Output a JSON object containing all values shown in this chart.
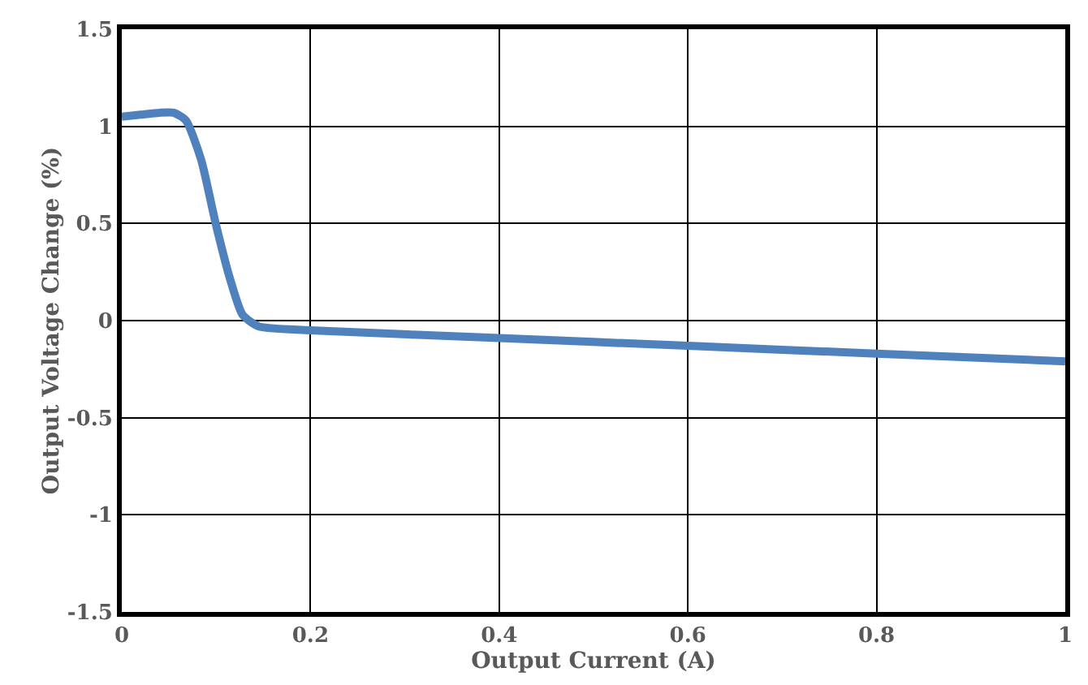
{
  "chart_data": {
    "type": "line",
    "xlabel": "Output Current (A)",
    "ylabel": "Output Voltage Change (%)",
    "x": [
      0,
      0.02,
      0.04,
      0.055,
      0.068,
      0.084,
      0.1,
      0.115,
      0.128,
      0.145,
      0.2,
      0.4,
      0.6,
      0.8,
      1
    ],
    "series": [
      {
        "color": "#4f81bd",
        "values": [
          1.05,
          1.06,
          1.07,
          1.07,
          1.03,
          0.83,
          0.49,
          0.21,
          0.03,
          -0.03,
          -0.05,
          -0.09,
          -0.13,
          -0.17,
          -0.21
        ]
      }
    ],
    "xlim": [
      0,
      1
    ],
    "xticks": [
      0,
      0.2,
      0.4,
      0.6,
      0.8,
      1
    ],
    "ylim": [
      -1.5,
      1.5
    ],
    "yticks": [
      -1.5,
      -1,
      -0.5,
      0,
      0.5,
      1,
      1.5
    ],
    "grid": true,
    "legend": false
  }
}
